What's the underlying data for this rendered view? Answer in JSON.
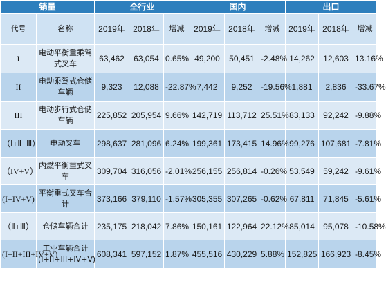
{
  "header": {
    "sales": "销量",
    "all_industry": "全行业",
    "domestic": "国内",
    "export": "出口"
  },
  "subheader": {
    "code": "代号",
    "name": "名称",
    "y2019": "2019年",
    "y2018": "2018年",
    "change": "增减"
  },
  "rows": [
    {
      "code": "I",
      "name": "电动平衡重乘驾式叉车",
      "all_2019": "63,462",
      "all_2018": "63,054",
      "all_chg": "0.65%",
      "dom_2019": "49,200",
      "dom_2018": "50,451",
      "dom_chg": "-2.48%",
      "exp_2019": "14,262",
      "exp_2018": "12,603",
      "exp_chg": "13.16%"
    },
    {
      "code": "II",
      "name": "电动乘驾式仓储车辆",
      "all_2019": "9,323",
      "all_2018": "12,088",
      "all_chg": "-22.87%",
      "dom_2019": "7,442",
      "dom_2018": "9,252",
      "dom_chg": "-19.56%",
      "exp_2019": "1,881",
      "exp_2018": "2,836",
      "exp_chg": "-33.67%"
    },
    {
      "code": "III",
      "name": "电动步行式仓储车辆",
      "all_2019": "225,852",
      "all_2018": "205,954",
      "all_chg": "9.66%",
      "dom_2019": "142,719",
      "dom_2018": "113,712",
      "dom_chg": "25.51%",
      "exp_2019": "83,133",
      "exp_2018": "92,242",
      "exp_chg": "-9.88%"
    },
    {
      "code": "（Ⅰ+Ⅱ+Ⅲ）",
      "name": "电动叉车",
      "all_2019": "298,637",
      "all_2018": "281,096",
      "all_chg": "6.24%",
      "dom_2019": "199,361",
      "dom_2018": "173,415",
      "dom_chg": "14.96%",
      "exp_2019": "99,276",
      "exp_2018": "107,681",
      "exp_chg": "-7.81%"
    },
    {
      "code": "（IV+V）",
      "name": "内燃平衡重式叉车",
      "all_2019": "309,704",
      "all_2018": "316,056",
      "all_chg": "-2.01%",
      "dom_2019": "256,155",
      "dom_2018": "256,814",
      "dom_chg": "-0.26%",
      "exp_2019": "53,549",
      "exp_2018": "59,242",
      "exp_chg": "-9.61%"
    },
    {
      "code": "(I+IV+V)",
      "name": "平衡重式叉车合计",
      "all_2019": "373,166",
      "all_2018": "379,110",
      "all_chg": "-1.57%",
      "dom_2019": "305,355",
      "dom_2018": "307,265",
      "dom_chg": "-0.62%",
      "exp_2019": "67,811",
      "exp_2018": "71,845",
      "exp_chg": "-5.61%"
    },
    {
      "code": "（Ⅱ+Ⅲ）",
      "name": "仓储车辆合计",
      "all_2019": "235,175",
      "all_2018": "218,042",
      "all_chg": "7.86%",
      "dom_2019": "150,161",
      "dom_2018": "122,964",
      "dom_chg": "22.12%",
      "exp_2019": "85,014",
      "exp_2018": "95,078",
      "exp_chg": "-10.58%"
    },
    {
      "code": "(I+II+III+IV+V)",
      "name": "工业车辆合计(I+II+III+IV+V)",
      "all_2019": "608,341",
      "all_2018": "597,152",
      "all_chg": "1.87%",
      "dom_2019": "455,516",
      "dom_2018": "430,229",
      "dom_chg": "5.88%",
      "exp_2019": "152,825",
      "exp_2018": "166,923",
      "exp_chg": "-8.45%"
    }
  ]
}
